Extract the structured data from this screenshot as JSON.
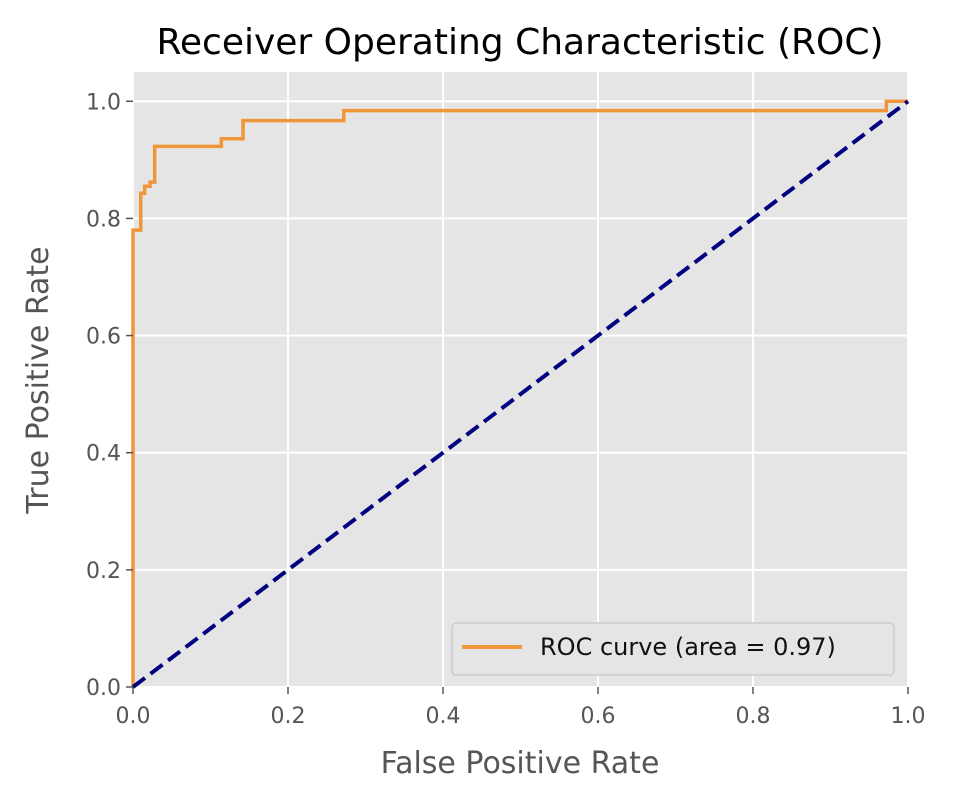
{
  "chart_data": {
    "type": "line",
    "title": "Receiver Operating Characteristic (ROC)",
    "xlabel": "False Positive Rate",
    "ylabel": "True Positive Rate",
    "xlim": [
      0.0,
      1.0
    ],
    "ylim": [
      0.0,
      1.05
    ],
    "xticks": [
      "0.0",
      "0.2",
      "0.4",
      "0.6",
      "0.8",
      "1.0"
    ],
    "yticks": [
      "0.0",
      "0.2",
      "0.4",
      "0.6",
      "0.8",
      "1.0"
    ],
    "grid": true,
    "legend_position": "lower right",
    "series": [
      {
        "name": "ROC curve (area = 0.97)",
        "color": "#f0963a",
        "linestyle": "solid",
        "x": [
          0.0,
          0.0,
          0.01,
          0.01,
          0.015,
          0.015,
          0.022,
          0.022,
          0.028,
          0.028,
          0.114,
          0.114,
          0.142,
          0.142,
          0.272,
          0.272,
          0.972,
          0.972,
          1.0
        ],
        "y": [
          0.0,
          0.78,
          0.78,
          0.843,
          0.843,
          0.855,
          0.855,
          0.862,
          0.862,
          0.923,
          0.923,
          0.936,
          0.936,
          0.967,
          0.967,
          0.984,
          0.984,
          1.0,
          1.0
        ]
      },
      {
        "color": "#000080",
        "linestyle": "dashed",
        "x": [
          0.0,
          1.0
        ],
        "y": [
          0.0,
          1.0
        ]
      }
    ]
  }
}
